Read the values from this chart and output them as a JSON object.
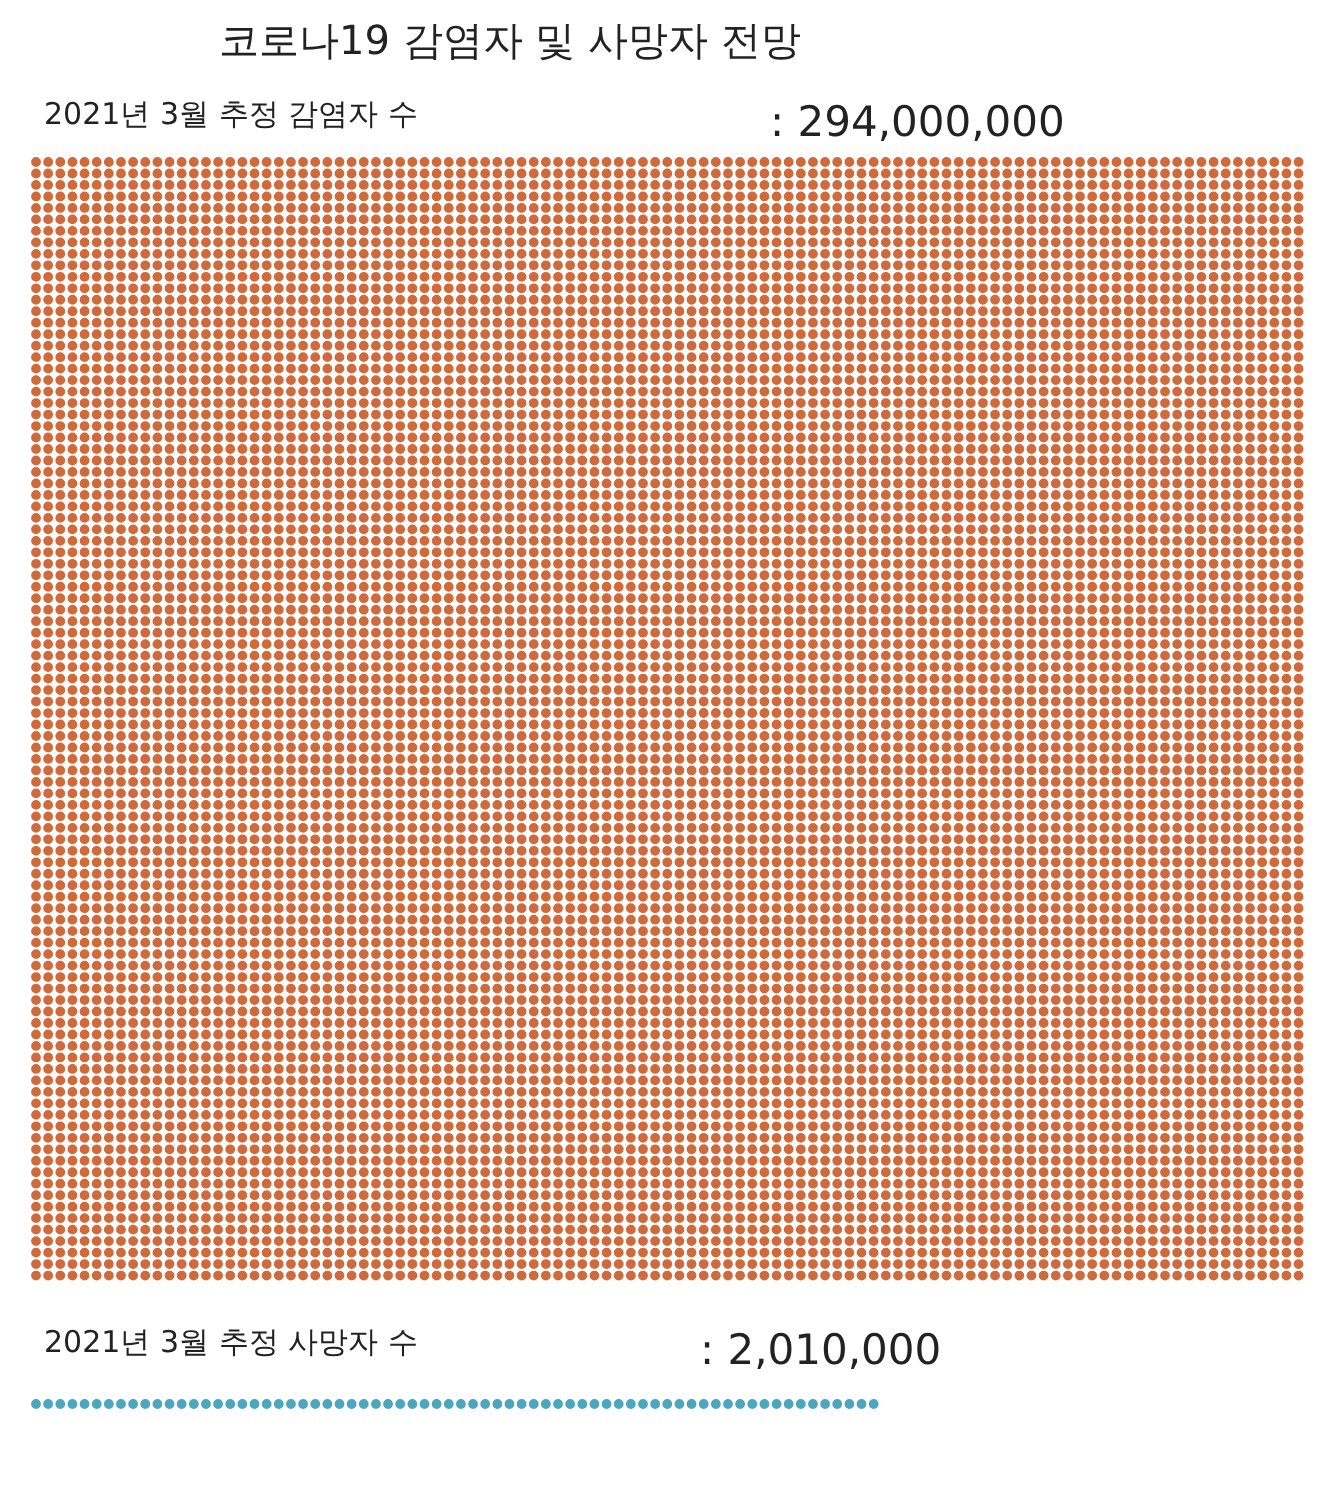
{
  "chart_data": {
    "type": "other",
    "title": "코로나19 감염자 및 사망자 전망",
    "categories": [
      "2021년 3월 추정 감염자 수",
      "2021년 3월 추정 사망자 수"
    ],
    "values": [
      294000000,
      2010000
    ],
    "value_labels": [
      ": 294,000,000",
      ": 2,010,000"
    ],
    "colors": [
      "#d0693b",
      "#4aa7be"
    ]
  }
}
